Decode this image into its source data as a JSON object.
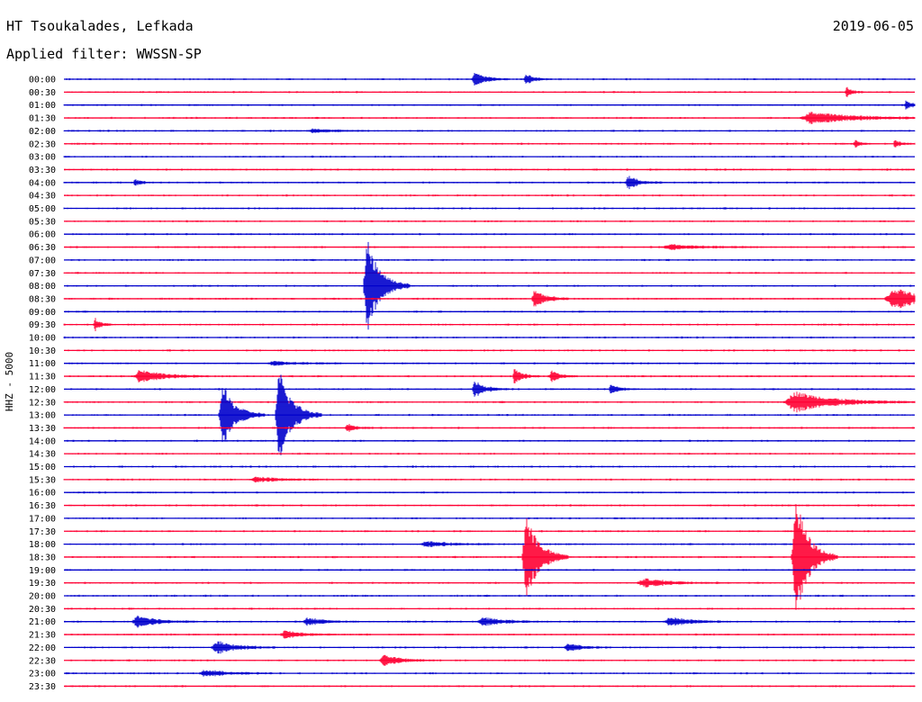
{
  "header": {
    "station": "HT Tsoukalades, Lefkada",
    "filter": "Applied filter: WWSSN-SP",
    "date": "2019-06-05"
  },
  "colors": {
    "even_row": "#0000cc",
    "odd_row": "#ff0033"
  },
  "chart_data": {
    "type": "line",
    "title": "",
    "xlabel": "",
    "ylabel": "HHZ - 5000",
    "row_labels": [
      "00:00",
      "00:30",
      "01:00",
      "01:30",
      "02:00",
      "02:30",
      "03:00",
      "03:30",
      "04:00",
      "04:30",
      "05:00",
      "05:30",
      "06:00",
      "06:30",
      "07:00",
      "07:30",
      "08:00",
      "08:30",
      "09:00",
      "09:30",
      "10:00",
      "10:30",
      "11:00",
      "11:30",
      "12:00",
      "12:30",
      "13:00",
      "13:30",
      "14:00",
      "14:30",
      "15:00",
      "15:30",
      "16:00",
      "16:30",
      "17:00",
      "17:30",
      "18:00",
      "18:30",
      "19:00",
      "19:30",
      "20:00",
      "20:30",
      "21:00",
      "21:30",
      "22:00",
      "22:30",
      "23:00",
      "23:30"
    ],
    "row_span_minutes": 30,
    "events": [
      {
        "row": 0,
        "minute": 14.5,
        "amplitude": 0.5,
        "duration": 0.4
      },
      {
        "row": 0,
        "minute": 16.3,
        "amplitude": 0.4,
        "duration": 0.3
      },
      {
        "row": 1,
        "minute": 27.6,
        "amplitude": 0.35,
        "duration": 0.2
      },
      {
        "row": 2,
        "minute": 29.7,
        "amplitude": 0.4,
        "duration": 0.2
      },
      {
        "row": 3,
        "minute": 26.4,
        "amplitude": 0.45,
        "duration": 1.5
      },
      {
        "row": 4,
        "minute": 8.8,
        "amplitude": 0.15,
        "duration": 0.6
      },
      {
        "row": 5,
        "minute": 27.9,
        "amplitude": 0.3,
        "duration": 0.2
      },
      {
        "row": 5,
        "minute": 29.3,
        "amplitude": 0.3,
        "duration": 0.2
      },
      {
        "row": 8,
        "minute": 19.9,
        "amplitude": 0.5,
        "duration": 0.4
      },
      {
        "row": 8,
        "minute": 2.5,
        "amplitude": 0.3,
        "duration": 0.2
      },
      {
        "row": 13,
        "minute": 21.4,
        "amplitude": 0.2,
        "duration": 1.0
      },
      {
        "row": 16,
        "minute": 10.7,
        "amplitude": 3.9,
        "duration": 0.5
      },
      {
        "row": 17,
        "minute": 16.6,
        "amplitude": 0.7,
        "duration": 0.4
      },
      {
        "row": 17,
        "minute": 29.3,
        "amplitude": 0.8,
        "duration": 1.2
      },
      {
        "row": 19,
        "minute": 1.1,
        "amplitude": 0.5,
        "duration": 0.2
      },
      {
        "row": 22,
        "minute": 7.4,
        "amplitude": 0.15,
        "duration": 0.8
      },
      {
        "row": 23,
        "minute": 2.7,
        "amplitude": 0.5,
        "duration": 0.8
      },
      {
        "row": 23,
        "minute": 15.9,
        "amplitude": 0.6,
        "duration": 0.3
      },
      {
        "row": 23,
        "minute": 17.2,
        "amplitude": 0.5,
        "duration": 0.3
      },
      {
        "row": 24,
        "minute": 14.5,
        "amplitude": 0.6,
        "duration": 0.4
      },
      {
        "row": 24,
        "minute": 19.3,
        "amplitude": 0.35,
        "duration": 0.3
      },
      {
        "row": 25,
        "minute": 25.8,
        "amplitude": 0.8,
        "duration": 1.4
      },
      {
        "row": 26,
        "minute": 5.6,
        "amplitude": 2.4,
        "duration": 0.5
      },
      {
        "row": 26,
        "minute": 7.6,
        "amplitude": 3.6,
        "duration": 0.5
      },
      {
        "row": 27,
        "minute": 10.0,
        "amplitude": 0.3,
        "duration": 0.3
      },
      {
        "row": 31,
        "minute": 6.8,
        "amplitude": 0.2,
        "duration": 0.8
      },
      {
        "row": 36,
        "minute": 12.8,
        "amplitude": 0.2,
        "duration": 0.8
      },
      {
        "row": 37,
        "minute": 16.3,
        "amplitude": 3.6,
        "duration": 0.5
      },
      {
        "row": 37,
        "minute": 25.8,
        "amplitude": 4.9,
        "duration": 0.5
      },
      {
        "row": 39,
        "minute": 20.5,
        "amplitude": 0.3,
        "duration": 1.0
      },
      {
        "row": 42,
        "minute": 2.6,
        "amplitude": 0.5,
        "duration": 0.7
      },
      {
        "row": 42,
        "minute": 8.6,
        "amplitude": 0.3,
        "duration": 0.6
      },
      {
        "row": 42,
        "minute": 14.8,
        "amplitude": 0.3,
        "duration": 0.8
      },
      {
        "row": 42,
        "minute": 21.4,
        "amplitude": 0.35,
        "duration": 0.7
      },
      {
        "row": 43,
        "minute": 7.8,
        "amplitude": 0.3,
        "duration": 0.6
      },
      {
        "row": 44,
        "minute": 5.4,
        "amplitude": 0.5,
        "duration": 0.7
      },
      {
        "row": 44,
        "minute": 17.8,
        "amplitude": 0.3,
        "duration": 0.5
      },
      {
        "row": 45,
        "minute": 11.3,
        "amplitude": 0.4,
        "duration": 0.6
      },
      {
        "row": 46,
        "minute": 5.0,
        "amplitude": 0.25,
        "duration": 0.8
      }
    ]
  }
}
